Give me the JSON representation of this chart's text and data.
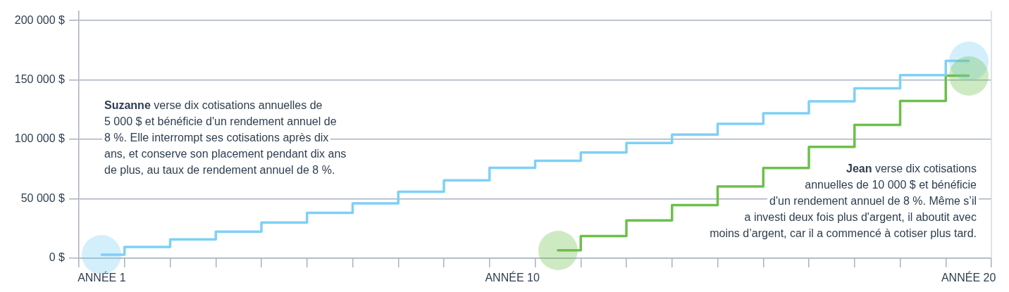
{
  "chart_data": {
    "type": "step",
    "categories": [
      "ANNÉE 1",
      null,
      null,
      null,
      null,
      null,
      null,
      null,
      null,
      "ANNÉE 10",
      null,
      null,
      null,
      null,
      null,
      null,
      null,
      null,
      null,
      "ANNÉE 20"
    ],
    "ylim": [
      0,
      208000
    ],
    "yticks": [
      {
        "value": 0,
        "label": "0 $"
      },
      {
        "value": 50000,
        "label": "50 000 $"
      },
      {
        "value": 100000,
        "label": "100 000 $"
      },
      {
        "value": 150000,
        "label": "150 000 $"
      },
      {
        "value": 200000,
        "label": "200 000 $"
      }
    ],
    "grid": "y",
    "legend": false,
    "line_style": "solid",
    "series": [
      {
        "color": "#7fd0f5",
        "values": [
          3000,
          9500,
          15800,
          22400,
          30100,
          38200,
          46200,
          56000,
          65600,
          76000,
          82000,
          89000,
          97000,
          104000,
          113000,
          122000,
          132000,
          143000,
          154000,
          166000
        ]
      },
      {
        "color": "#6cc04a",
        "values": [
          null,
          null,
          null,
          null,
          null,
          null,
          null,
          null,
          null,
          null,
          6700,
          18600,
          31800,
          44700,
          60400,
          75900,
          93700,
          112200,
          132300,
          153600
        ]
      }
    ],
    "annotations": [
      "Suzanne verse dix cotisations annuelles de\n5 000 $ et bénéficie d'un rendement annuel de\n8 %. Elle interrompt ses cotisations après dix\nans, et conserve son placement pendant dix ans\nde plus, au taux de rendement annuel de 8 %.",
      "Jean verse dix cotisations\nannuelles de 10 000 $ et bénéficie\nd'un rendement annuel de 8 %. Même s’il\na investi deux fois plus d'argent, il aboutit avec\nmoins d’argent, car il a commencé à cotiser plus tard."
    ]
  }
}
